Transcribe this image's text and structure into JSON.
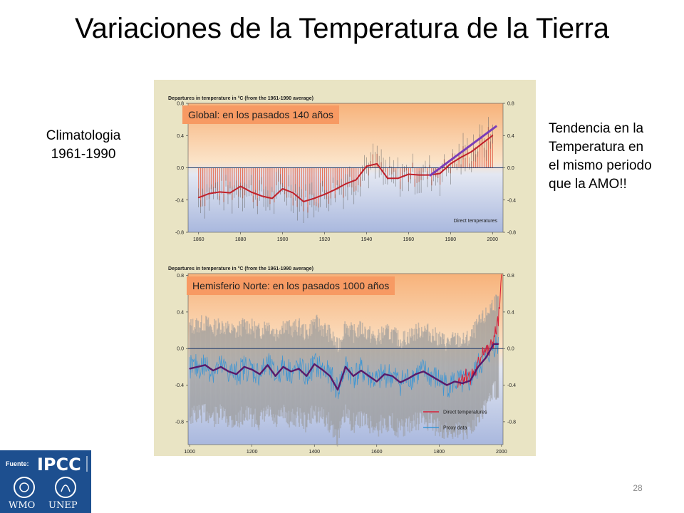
{
  "slide": {
    "title": "Variaciones de la Temperatura de la Tierra",
    "climatology": [
      "Climatologia",
      "1961-1990"
    ],
    "trend_note": [
      "Tendencia en la",
      "Temperatura en",
      "el mismo periodo",
      "que la AMO!!"
    ],
    "page_number": "28",
    "source_label": "Fuente:",
    "logos": {
      "ipcc": "IPCC",
      "wmo": "WMO",
      "unep": "UNEP"
    }
  },
  "chart_data": [
    {
      "type": "line",
      "title": "Departures in temperature in °C (from the 1961-1990 average)",
      "annotation": "Global: en los pasados 140 años",
      "legend": [
        "Direct temperatures"
      ],
      "xlim": [
        1855,
        2005
      ],
      "ylim": [
        -0.8,
        0.8
      ],
      "xticks": [
        "1860",
        "1880",
        "1900",
        "1920",
        "1940",
        "1960",
        "1980",
        "2000"
      ],
      "yticks": [
        "0.8",
        "0.4",
        "0.0",
        "-0.4",
        "-0.8"
      ],
      "bar_color": "#e4725a",
      "smooth_color": "#c0202a",
      "trend_color": "#7a3db8",
      "series": [
        {
          "name": "Direct temperatures",
          "x": [
            1860,
            1865,
            1870,
            1875,
            1880,
            1885,
            1890,
            1895,
            1900,
            1905,
            1910,
            1915,
            1920,
            1925,
            1930,
            1935,
            1940,
            1945,
            1950,
            1955,
            1960,
            1965,
            1970,
            1975,
            1980,
            1985,
            1990,
            1995,
            2000
          ],
          "values": [
            -0.37,
            -0.32,
            -0.3,
            -0.31,
            -0.23,
            -0.3,
            -0.35,
            -0.38,
            -0.26,
            -0.31,
            -0.42,
            -0.38,
            -0.33,
            -0.27,
            -0.2,
            -0.15,
            0.02,
            0.05,
            -0.13,
            -0.13,
            -0.08,
            -0.09,
            -0.09,
            -0.07,
            0.05,
            0.13,
            0.2,
            0.3,
            0.4
          ]
        }
      ],
      "trend": {
        "x": [
          1970,
          2002
        ],
        "values": [
          -0.1,
          0.52
        ]
      }
    },
    {
      "type": "line",
      "title": "Departures in temperature in °C (from the 1961-1990 average)",
      "annotation": "Hemisferio Norte: en los pasados 1000 años",
      "legend": [
        "Direct temperatures",
        "Proxy data"
      ],
      "xlim": [
        995,
        2005
      ],
      "ylim": [
        -1.05,
        0.82
      ],
      "xticks": [
        "1000",
        "1200",
        "1400",
        "1600",
        "1800",
        "2000"
      ],
      "yticks": [
        "0.8",
        "0.4",
        "0.0",
        "-0.4",
        "-0.8"
      ],
      "smooth_color": "#5a1a6a",
      "proxy_color": "#3b95d4",
      "direct_color": "#d8203a",
      "band_color": "#9a9a9a",
      "series": [
        {
          "name": "Proxy data",
          "x": [
            1000,
            1025,
            1050,
            1075,
            1100,
            1125,
            1150,
            1175,
            1200,
            1225,
            1250,
            1275,
            1300,
            1325,
            1350,
            1375,
            1400,
            1425,
            1450,
            1475,
            1500,
            1525,
            1550,
            1575,
            1600,
            1625,
            1650,
            1675,
            1700,
            1725,
            1750,
            1775,
            1800,
            1825,
            1850,
            1875,
            1900,
            1925,
            1950,
            1975,
            1990
          ],
          "values": [
            -0.22,
            -0.2,
            -0.18,
            -0.24,
            -0.2,
            -0.25,
            -0.28,
            -0.2,
            -0.23,
            -0.28,
            -0.18,
            -0.3,
            -0.2,
            -0.25,
            -0.22,
            -0.3,
            -0.17,
            -0.23,
            -0.3,
            -0.45,
            -0.2,
            -0.3,
            -0.24,
            -0.3,
            -0.36,
            -0.28,
            -0.3,
            -0.37,
            -0.33,
            -0.28,
            -0.25,
            -0.3,
            -0.35,
            -0.4,
            -0.36,
            -0.38,
            -0.35,
            -0.2,
            -0.1,
            0.05,
            0.05
          ]
        },
        {
          "name": "Direct temperatures",
          "x": [
            1860,
            1880,
            1900,
            1920,
            1940,
            1960,
            1980,
            1990,
            1995,
            2000
          ],
          "values": [
            -0.35,
            -0.3,
            -0.3,
            -0.25,
            0.0,
            -0.05,
            0.15,
            0.3,
            0.45,
            0.75
          ]
        }
      ]
    }
  ]
}
